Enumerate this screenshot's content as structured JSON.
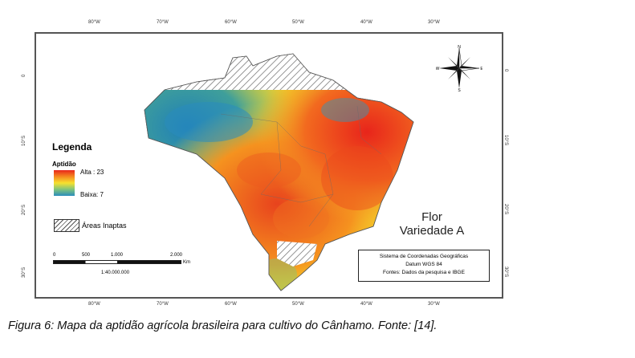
{
  "map": {
    "longitude_ticks": [
      "80°W",
      "70°W",
      "60°W",
      "50°W",
      "40°W",
      "30°W"
    ],
    "latitude_ticks": [
      "0",
      "10°S",
      "20°S",
      "30°S"
    ],
    "compass": {
      "n": "N",
      "s": "S",
      "e": "E",
      "w": "W"
    },
    "legend": {
      "title": "Legenda",
      "aptidao_label": "Aptidão",
      "high_label": "Alta : 23",
      "low_label": "Baixa: 7",
      "inapt_label": "Áreas Inaptas",
      "ramp_colors": [
        "#e8251b",
        "#f58a1f",
        "#f7e12e",
        "#7fc47c",
        "#2a8dbd"
      ]
    },
    "scale": {
      "labels": [
        "0",
        "500",
        "1.000",
        "2.000"
      ],
      "unit": "Km",
      "ratio": "1:40.000.000"
    },
    "title_line1": "Flor",
    "title_line2": "Variedade A",
    "info": {
      "line1": "Sistema de Coordenadas Geográficas",
      "line2": "Datum WGS 84",
      "line3": "Fontes: Dados da pesquisa e IBGE"
    }
  },
  "caption": "Figura 6: Mapa da aptidão agrícola brasileira para cultivo do Cânhamo. Fonte: [14]."
}
